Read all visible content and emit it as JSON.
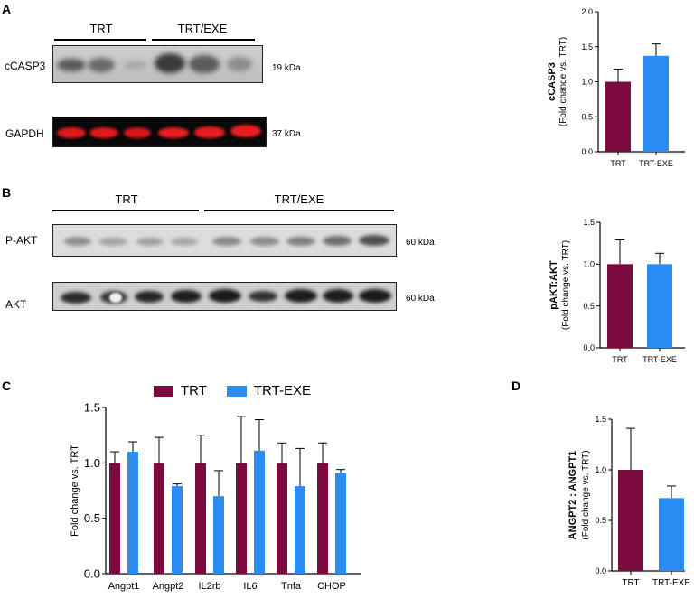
{
  "colors": {
    "trt": "#7b0a3e",
    "exe": "#2b8cf2",
    "red_band": "#e0191b"
  },
  "panels": {
    "A": {
      "letter": "A",
      "groups": [
        "TRT",
        "TRT/EXE"
      ],
      "blot_rows": [
        {
          "label": "cCASP3",
          "kda": "19 kDa"
        },
        {
          "label": "GAPDH",
          "kda": "37 kDa"
        }
      ]
    },
    "B": {
      "letter": "B",
      "groups": [
        "TRT",
        "TRT/EXE"
      ],
      "blot_rows": [
        {
          "label": "P-AKT",
          "kda": "60 kDa"
        },
        {
          "label": "AKT",
          "kda": "60 kDa"
        }
      ]
    },
    "C": {
      "letter": "C"
    },
    "D": {
      "letter": "D"
    }
  },
  "chart_data": [
    {
      "id": "A",
      "type": "bar",
      "categories": [
        "TRT",
        "TRT-EXE"
      ],
      "values": [
        1.0,
        1.37
      ],
      "errors": [
        0.18,
        0.17
      ],
      "ylabel": "cCASP3",
      "ylabel_sub": "(Fold change vs. TRT)",
      "ylim": [
        0,
        2.0
      ],
      "yticks": [
        "0.0",
        "0.5",
        "1.0",
        "1.5",
        "2.0"
      ]
    },
    {
      "id": "B",
      "type": "bar",
      "categories": [
        "TRT",
        "TRT-EXE"
      ],
      "values": [
        1.0,
        1.0
      ],
      "errors": [
        0.29,
        0.13
      ],
      "ylabel": "pAKT:AKT",
      "ylabel_sub": "(Fold change vs. TRT)",
      "ylim": [
        0,
        1.5
      ],
      "yticks": [
        "0.0",
        "0.5",
        "1.0",
        "1.5"
      ]
    },
    {
      "id": "C",
      "type": "bar",
      "categories": [
        "Angpt1",
        "Angpt2",
        "IL2rb",
        "IL6",
        "Tnfa",
        "CHOP"
      ],
      "series": [
        {
          "name": "TRT",
          "values": [
            1.0,
            1.0,
            1.0,
            1.0,
            1.0,
            1.0
          ],
          "errors": [
            0.1,
            0.23,
            0.25,
            0.42,
            0.18,
            0.18
          ]
        },
        {
          "name": "TRT-EXE",
          "values": [
            1.1,
            0.79,
            0.7,
            1.11,
            0.79,
            0.91
          ],
          "errors": [
            0.09,
            0.02,
            0.23,
            0.28,
            0.34,
            0.03
          ]
        }
      ],
      "ylabel": "Fold change vs. TRT",
      "ylim": [
        0,
        1.5
      ],
      "yticks": [
        "0.0",
        "0.5",
        "1.0",
        "1.5"
      ],
      "legend": "top"
    },
    {
      "id": "D",
      "type": "bar",
      "categories": [
        "TRT",
        "TRT-EXE"
      ],
      "values": [
        1.0,
        0.72
      ],
      "errors": [
        0.41,
        0.12
      ],
      "ylabel": "ANGPT2 : ANGPT1",
      "ylabel_sub": "(Fold change vs. TRT)",
      "ylim": [
        0,
        1.5
      ],
      "yticks": [
        "0.0",
        "0.5",
        "1.0",
        "1.5"
      ]
    }
  ]
}
